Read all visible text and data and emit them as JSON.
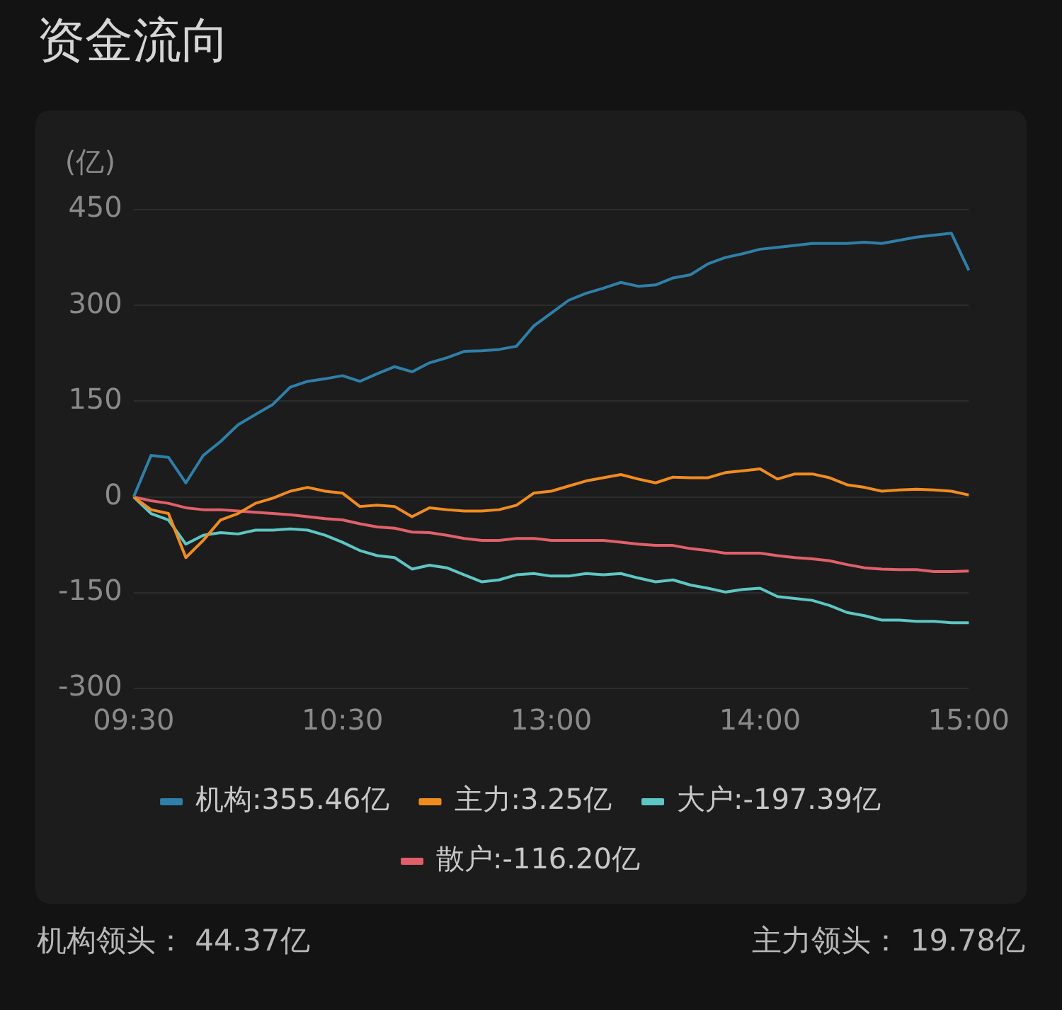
{
  "chart_data": {
    "type": "line",
    "title": "资金流向",
    "ylabel": "(亿)",
    "categories": [
      "09:30",
      null,
      null,
      null,
      null,
      null,
      null,
      null,
      null,
      null,
      null,
      null,
      "10:30",
      null,
      null,
      null,
      null,
      null,
      null,
      null,
      null,
      null,
      null,
      null,
      "13:00",
      null,
      null,
      null,
      null,
      null,
      null,
      null,
      null,
      null,
      null,
      null,
      "14:00",
      null,
      null,
      null,
      null,
      null,
      null,
      null,
      null,
      null,
      null,
      null,
      "15:00"
    ],
    "series": [
      {
        "name": "机构:355.46亿",
        "color": "#2f7fa8",
        "values": [
          0,
          65,
          62,
          22,
          65,
          87,
          113,
          129,
          145,
          172,
          181,
          185,
          190,
          181,
          193,
          204,
          196,
          210,
          218,
          228,
          229,
          231,
          236,
          268,
          288,
          308,
          319,
          327,
          336,
          330,
          332,
          343,
          348,
          365,
          375,
          381,
          388,
          391,
          394,
          397,
          397,
          397,
          399,
          397,
          402,
          407,
          410,
          413,
          355
        ]
      },
      {
        "name": "主力:3.25亿",
        "color": "#f08c1e",
        "values": [
          0,
          -20,
          -26,
          -95,
          -68,
          -36,
          -26,
          -10,
          -2,
          9,
          15,
          9,
          6,
          -15,
          -13,
          -15,
          -31,
          -17,
          -20,
          -22,
          -22,
          -20,
          -13,
          6,
          9,
          17,
          25,
          30,
          35,
          28,
          22,
          31,
          30,
          30,
          38,
          41,
          44,
          28,
          36,
          36,
          30,
          19,
          15,
          9,
          11,
          12,
          11,
          9,
          3
        ]
      },
      {
        "name": "大户:-197.39亿",
        "color": "#5ec6c4",
        "values": [
          0,
          -26,
          -36,
          -74,
          -60,
          -56,
          -58,
          -52,
          -52,
          -50,
          -52,
          -60,
          -71,
          -84,
          -92,
          -95,
          -113,
          -107,
          -111,
          -122,
          -133,
          -130,
          -122,
          -120,
          -124,
          -124,
          -120,
          -122,
          -120,
          -127,
          -133,
          -130,
          -138,
          -143,
          -149,
          -145,
          -143,
          -156,
          -159,
          -162,
          -170,
          -181,
          -186,
          -193,
          -193,
          -195,
          -195,
          -197,
          -197
        ]
      },
      {
        "name": "散户:-116.20亿",
        "color": "#e0606a",
        "values": [
          0,
          -6,
          -10,
          -17,
          -20,
          -20,
          -22,
          -24,
          -26,
          -28,
          -31,
          -34,
          -36,
          -42,
          -47,
          -49,
          -55,
          -56,
          -60,
          -65,
          -68,
          -68,
          -65,
          -65,
          -68,
          -68,
          -68,
          -68,
          -71,
          -74,
          -76,
          -76,
          -81,
          -84,
          -88,
          -88,
          -88,
          -92,
          -95,
          -97,
          -100,
          -106,
          -111,
          -113,
          -114,
          -114,
          -117,
          -117,
          -116
        ]
      }
    ],
    "ylim": [
      -300,
      450
    ],
    "yticks": [
      -300,
      -150,
      0,
      150,
      300,
      450
    ],
    "grid": "y",
    "legend": "bottom",
    "marker": "none",
    "line_style": "solid",
    "annotations": [
      "机构领头： 44.37亿",
      "主力领头： 19.78亿"
    ]
  }
}
